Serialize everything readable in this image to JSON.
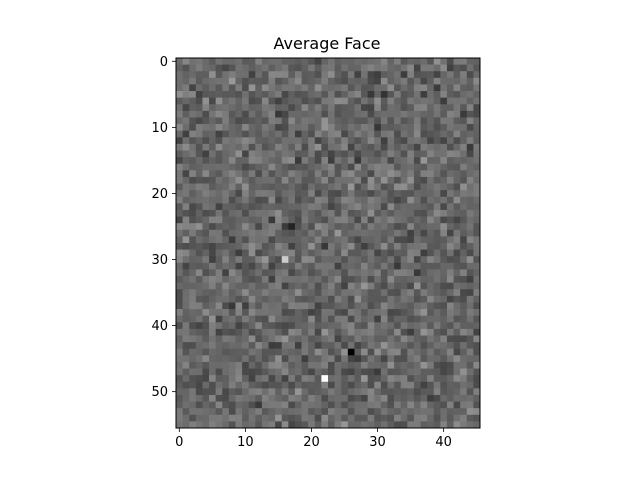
{
  "chart_data": {
    "type": "heatmap",
    "title": "Average Face",
    "xlabel": "",
    "ylabel": "",
    "colormap": "gray",
    "shape": [
      56,
      46
    ],
    "xlim": [
      -0.5,
      45.5
    ],
    "ylim": [
      55.5,
      -0.5
    ],
    "xticks": [
      0,
      10,
      20,
      30,
      40
    ],
    "yticks": [
      0,
      10,
      20,
      30,
      40,
      50
    ],
    "grid": false,
    "legend": "none",
    "notable_pixels": [
      {
        "x": 22,
        "y": 48,
        "value": "white"
      },
      {
        "x": 26,
        "y": 44,
        "value": "black"
      },
      {
        "x": 16,
        "y": 30,
        "value": "light"
      },
      {
        "x": 17,
        "y": 25,
        "value": "dark"
      }
    ]
  },
  "colors": {
    "mid_gray": "#6b6b6b",
    "axis": "#000000",
    "background": "#ffffff"
  }
}
